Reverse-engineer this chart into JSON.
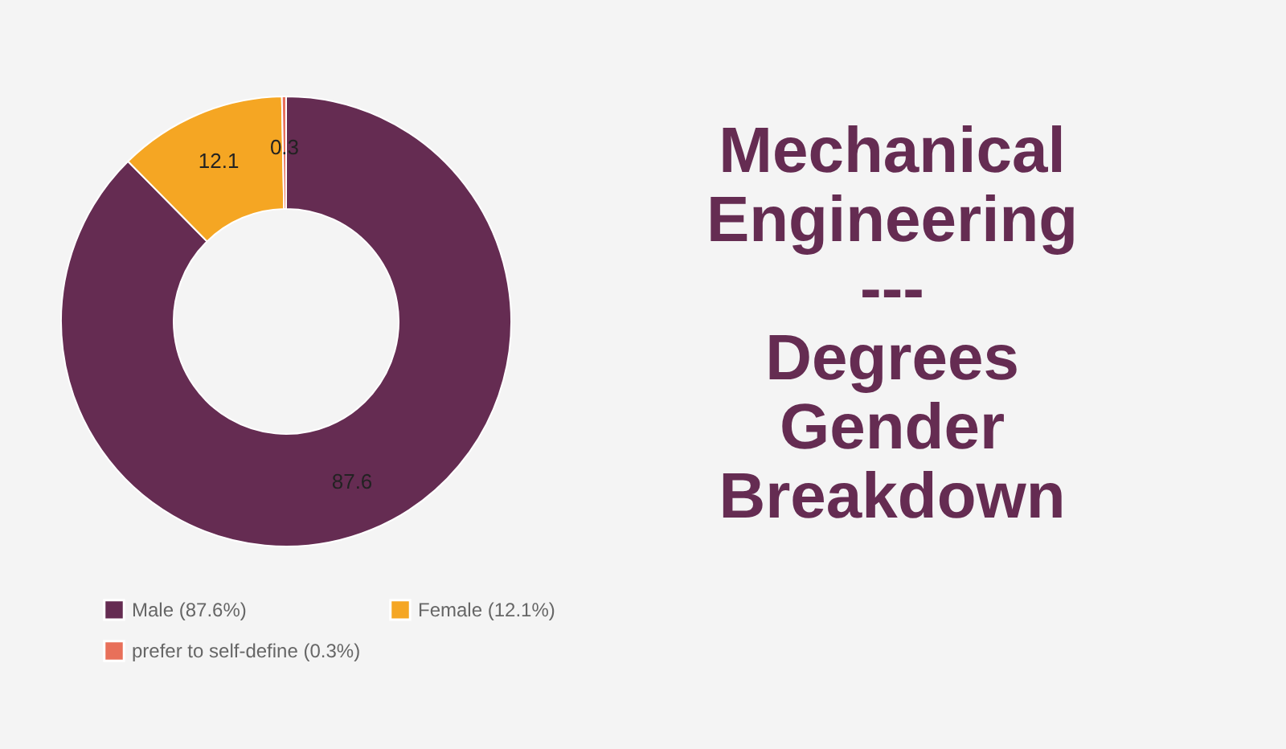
{
  "chart_data": {
    "type": "donut",
    "title": [
      "Mechanical",
      "Engineering",
      "---",
      "Degrees",
      "Gender",
      "Breakdown"
    ],
    "categories": [
      "Male (87.6%)",
      "Female (12.1%)",
      "prefer to self-define (0.3%)"
    ],
    "values": [
      87.6,
      12.1,
      0.3
    ],
    "colors": [
      "#652c52",
      "#f5a623",
      "#e8705a"
    ],
    "data_labels": true,
    "legend": "bottom"
  }
}
